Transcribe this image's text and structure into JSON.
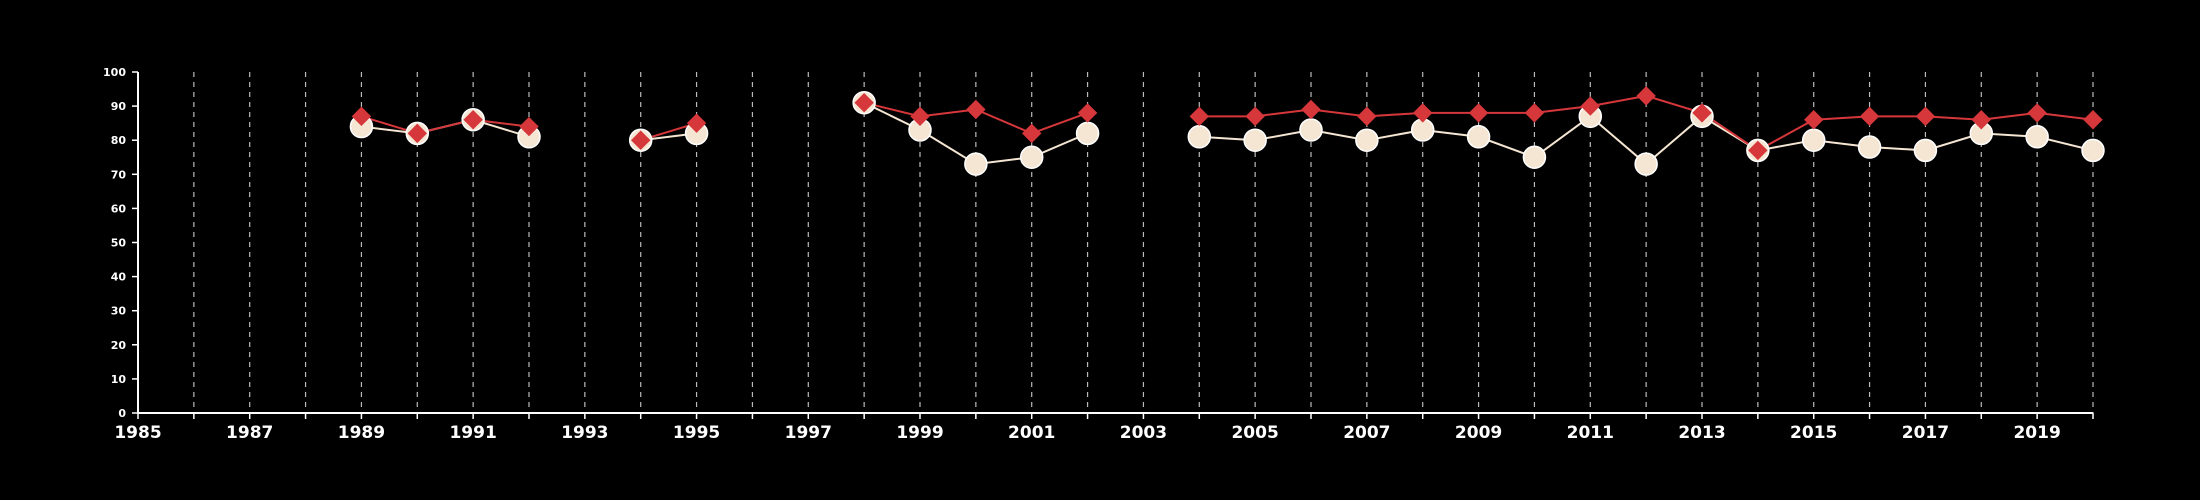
{
  "chart_data": {
    "type": "line",
    "title": "",
    "xlabel": "",
    "ylabel": "",
    "xlim": [
      1985,
      2020
    ],
    "ylim": [
      0,
      100
    ],
    "yticks": [
      0,
      10,
      20,
      30,
      40,
      50,
      60,
      70,
      80,
      90,
      100
    ],
    "xtick_labels": [
      1985,
      1987,
      1989,
      1991,
      1993,
      1995,
      1997,
      1999,
      2001,
      2003,
      2005,
      2007,
      2009,
      2011,
      2013,
      2015,
      2017,
      2019
    ],
    "vertical_grid": "dashed, every year",
    "legend": "none",
    "colors": {
      "background": "#000000",
      "axis": "#ffffff",
      "grid": "#bbbbbb"
    },
    "series": [
      {
        "marker": "circle",
        "color": "#f5e6d3",
        "x": [
          1989,
          1990,
          1991,
          1992,
          1994,
          1995,
          1998,
          1999,
          2000,
          2001,
          2002,
          2004,
          2005,
          2006,
          2007,
          2008,
          2009,
          2010,
          2011,
          2012,
          2013,
          2014,
          2015,
          2016,
          2017,
          2018,
          2019,
          2020
        ],
        "values": [
          84,
          82,
          86,
          81,
          80,
          82,
          91,
          83,
          73,
          75,
          82,
          81,
          80,
          83,
          80,
          83,
          81,
          75,
          87,
          73,
          87,
          77,
          80,
          78,
          77,
          82,
          81,
          77
        ]
      },
      {
        "marker": "diamond",
        "color": "#d6373b",
        "x": [
          1989,
          1990,
          1991,
          1992,
          1994,
          1995,
          1998,
          1999,
          2000,
          2001,
          2002,
          2004,
          2005,
          2006,
          2007,
          2008,
          2009,
          2010,
          2011,
          2012,
          2013,
          2014,
          2015,
          2016,
          2017,
          2018,
          2019,
          2020
        ],
        "values": [
          87,
          82,
          86,
          84,
          80,
          85,
          91,
          87,
          89,
          82,
          88,
          87,
          87,
          89,
          87,
          88,
          88,
          88,
          90,
          93,
          88,
          77,
          86,
          87,
          87,
          86,
          88,
          86
        ]
      }
    ]
  }
}
